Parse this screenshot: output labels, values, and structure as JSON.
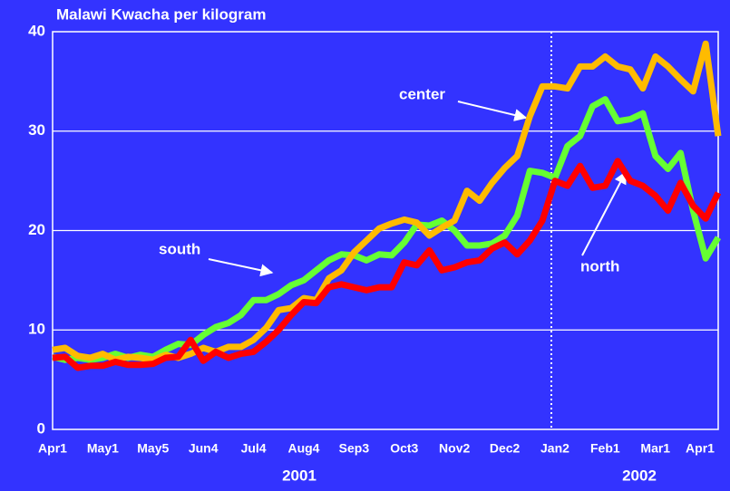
{
  "chart_data": {
    "type": "line",
    "title": "Malawi Kwacha per kilogram",
    "categories": [
      "Apr1",
      null,
      null,
      null,
      "May1",
      null,
      null,
      null,
      "May5",
      null,
      null,
      null,
      "Jun4",
      null,
      null,
      null,
      "Jul4",
      null,
      null,
      null,
      "Aug4",
      null,
      null,
      null,
      "Sep3",
      null,
      null,
      null,
      "Oct3",
      null,
      null,
      null,
      "Nov2",
      null,
      null,
      null,
      "Dec2",
      null,
      null,
      null,
      "Jan2",
      null,
      null,
      null,
      "Feb1",
      null,
      null,
      null,
      "Mar1",
      null,
      null,
      null,
      null,
      "Apr1"
    ],
    "year_labels": [
      "2001",
      "2002"
    ],
    "series": [
      {
        "name": "south",
        "color": "#66ff33",
        "values": [
          7.3,
          7.0,
          7.2,
          7.0,
          7.2,
          7.6,
          7.2,
          7.5,
          7.3,
          8.0,
          8.6,
          8.5,
          9.5,
          10.3,
          10.7,
          11.5,
          13.0,
          13.0,
          13.6,
          14.5,
          15.0,
          16.0,
          17.0,
          17.6,
          17.5,
          17.0,
          17.6,
          17.5,
          18.8,
          20.6,
          20.5,
          21.0,
          20.0,
          18.5,
          18.5,
          18.7,
          19.5,
          21.5,
          26.0,
          25.8,
          25.3,
          28.5,
          29.5,
          32.5,
          33.2,
          31.0,
          31.2,
          31.8,
          27.5,
          26.2,
          27.8,
          22.0,
          17.2,
          19.3
        ]
      },
      {
        "name": "center",
        "color": "#ffbb00",
        "values": [
          8.0,
          8.2,
          7.4,
          7.2,
          7.6,
          7.0,
          7.3,
          7.2,
          7.0,
          7.5,
          7.2,
          7.6,
          8.2,
          7.8,
          8.3,
          8.3,
          9.0,
          10.2,
          12.0,
          12.2,
          13.2,
          13.0,
          15.2,
          16.0,
          17.8,
          19.0,
          20.2,
          20.7,
          21.1,
          20.8,
          19.5,
          20.3,
          21.0,
          24.0,
          23.0,
          24.8,
          26.3,
          27.5,
          31.5,
          34.5,
          34.5,
          34.3,
          36.5,
          36.5,
          37.5,
          36.5,
          36.2,
          34.3,
          37.5,
          36.5,
          35.2,
          34.0,
          38.8,
          29.5
        ]
      },
      {
        "name": "north",
        "color": "#ff0000",
        "values": [
          7.2,
          7.3,
          6.2,
          6.4,
          6.4,
          6.8,
          6.5,
          6.5,
          6.6,
          7.2,
          7.3,
          9.0,
          6.9,
          7.8,
          7.2,
          7.6,
          7.8,
          8.8,
          10.0,
          11.5,
          12.8,
          12.7,
          14.3,
          14.6,
          14.3,
          14.0,
          14.3,
          14.3,
          16.8,
          16.5,
          18.0,
          16.0,
          16.3,
          16.8,
          17.0,
          18.2,
          18.8,
          17.6,
          19.0,
          21.0,
          25.0,
          24.5,
          26.5,
          24.3,
          24.5,
          27.0,
          25.0,
          24.5,
          23.5,
          22.0,
          24.8,
          22.5,
          21.2,
          23.8
        ]
      }
    ],
    "ylim": [
      0,
      40
    ],
    "yticks": [
      0,
      10,
      20,
      30,
      40
    ],
    "grid": true
  }
}
